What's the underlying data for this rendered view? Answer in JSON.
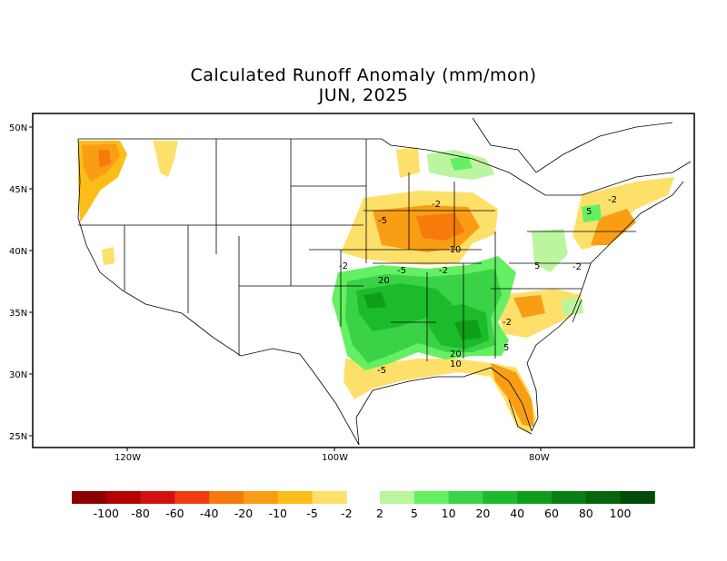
{
  "title": "Calculated Runoff Anomaly (mm/mon)",
  "subtitle": "JUN, 2025",
  "axes": {
    "lat_labels": [
      "50N",
      "45N",
      "40N",
      "35N",
      "30N",
      "25N"
    ],
    "lon_labels": [
      "120W",
      "100W",
      "80W"
    ]
  },
  "contour_labels": [
    "-5",
    "-2",
    "-10",
    "-2",
    "-5",
    "20",
    "-2",
    "5",
    "-2",
    "20",
    "10",
    "5",
    "-5",
    "-2",
    "5",
    "-2"
  ],
  "legend": {
    "negative": {
      "labels": [
        "-100",
        "-80",
        "-60",
        "-40",
        "-20",
        "-10",
        "-5",
        "-2"
      ],
      "colors": [
        "#8b0000",
        "#b30000",
        "#d40f0f",
        "#f03c0c",
        "#f77a0d",
        "#f99e14",
        "#fcbd18",
        "#fde06a"
      ]
    },
    "positive": {
      "labels": [
        "2",
        "5",
        "10",
        "20",
        "40",
        "60",
        "80",
        "100"
      ],
      "colors": [
        "#bcf5a0",
        "#64f062",
        "#3ad247",
        "#1cbb2c",
        "#0e9e19",
        "#087f12",
        "#05660c",
        "#024a08"
      ]
    }
  },
  "colors": {
    "frame": "#000000",
    "background": "#ffffff"
  }
}
